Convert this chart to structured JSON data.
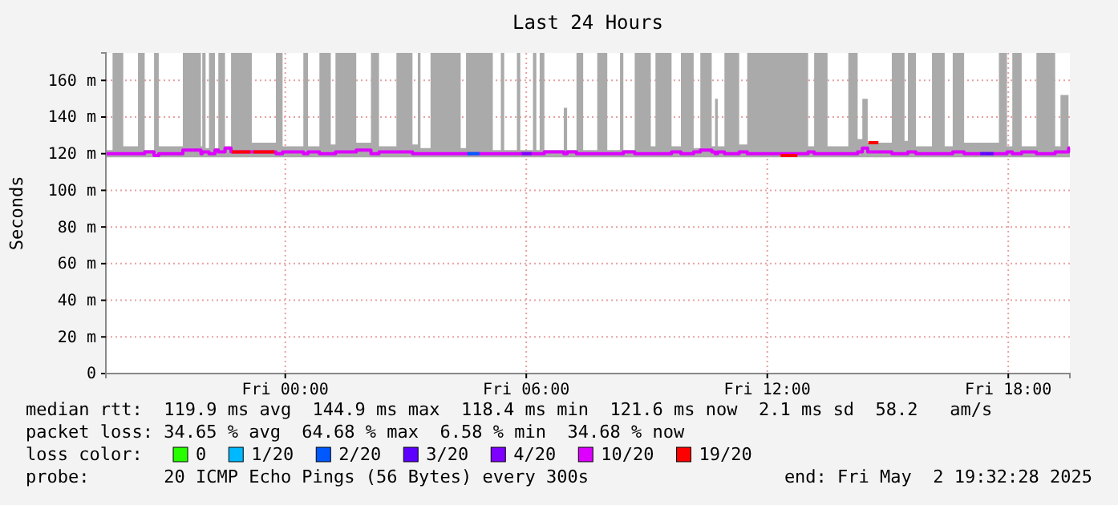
{
  "chart_data": {
    "type": "line",
    "title": "Last 24 Hours",
    "ylabel": "Seconds",
    "xlim": [
      "2025-05-01T19:32",
      "2025-05-02T19:32"
    ],
    "xticks": [
      {
        "value": "2025-05-02T00:00",
        "label": "Fri 00:00"
      },
      {
        "value": "2025-05-02T06:00",
        "label": "Fri 06:00"
      },
      {
        "value": "2025-05-02T12:00",
        "label": "Fri 12:00"
      },
      {
        "value": "2025-05-02T18:00",
        "label": "Fri 18:00"
      }
    ],
    "ylim": [
      0,
      175
    ],
    "yticks": [
      0,
      {
        "value": 20,
        "label": "20 m"
      },
      {
        "value": 40,
        "label": "40 m"
      },
      {
        "value": 60,
        "label": "60 m"
      },
      {
        "value": 80,
        "label": "80 m"
      },
      {
        "value": 100,
        "label": "100 m"
      },
      {
        "value": 120,
        "label": "120 m"
      },
      {
        "value": 140,
        "label": "140 m"
      },
      {
        "value": 160,
        "label": "160 m"
      }
    ],
    "grid": true,
    "legend": "bottom",
    "legend_title": "loss color:",
    "line_style": "solid",
    "marker": "none",
    "series": [
      {
        "name": "0",
        "color": "#26ff00"
      },
      {
        "name": "1/20",
        "color": "#00b8ff"
      },
      {
        "name": "2/20",
        "color": "#0059ff",
        "x": [
          "2025-05-02T04:32",
          "2025-05-02T04:50"
        ],
        "values": [
          120,
          120
        ]
      },
      {
        "name": "3/20",
        "color": "#5e00ff",
        "x": [
          "2025-05-02T17:18",
          "2025-05-02T17:38"
        ],
        "values": [
          120,
          120
        ]
      },
      {
        "name": "4/20",
        "color": "#7e00ff",
        "x": [
          "2025-05-02T05:53",
          "2025-05-02T06:08"
        ],
        "values": [
          120,
          120
        ]
      },
      {
        "name": "10/20",
        "color": "#dd00ff",
        "x": [
          "2025-05-01T19:32",
          "2025-05-01T19:42",
          "2025-05-01T19:58",
          "2025-05-01T20:20",
          "2025-05-01T20:30",
          "2025-05-01T20:44",
          "2025-05-01T20:51",
          "2025-05-01T21:27",
          "2025-05-01T21:54",
          "2025-05-01T21:56",
          "2025-05-01T22:01",
          "2025-05-01T22:06",
          "2025-05-01T22:15",
          "2025-05-01T22:20",
          "2025-05-01T22:30",
          "2025-05-01T22:39",
          "2025-05-01T23:10",
          "2025-05-01T23:46",
          "2025-05-01T23:56",
          "2025-05-02T00:27",
          "2025-05-02T00:34",
          "2025-05-02T00:51",
          "2025-05-02T01:08",
          "2025-05-02T01:15",
          "2025-05-02T01:46",
          "2025-05-02T02:08",
          "2025-05-02T02:20",
          "2025-05-02T02:46",
          "2025-05-02T03:10",
          "2025-05-02T03:18",
          "2025-05-02T03:22",
          "2025-05-02T03:37",
          "2025-05-02T04:22",
          "2025-05-02T04:30",
          "2025-05-02T05:10",
          "2025-05-02T05:22",
          "2025-05-02T05:27",
          "2025-05-02T05:46",
          "2025-05-02T05:51",
          "2025-05-02T06:10",
          "2025-05-02T06:15",
          "2025-05-02T06:20",
          "2025-05-02T06:27",
          "2025-05-02T06:56",
          "2025-05-02T07:01",
          "2025-05-02T07:15",
          "2025-05-02T07:25",
          "2025-05-02T07:46",
          "2025-05-02T08:01",
          "2025-05-02T08:20",
          "2025-05-02T08:25",
          "2025-05-02T08:42",
          "2025-05-02T09:06",
          "2025-05-02T09:13",
          "2025-05-02T09:37",
          "2025-05-02T09:51",
          "2025-05-02T10:10",
          "2025-05-02T10:20",
          "2025-05-02T10:37",
          "2025-05-02T10:42",
          "2025-05-02T10:46",
          "2025-05-02T10:56",
          "2025-05-02T11:18",
          "2025-05-02T11:30",
          "2025-05-02T13:01",
          "2025-05-02T13:10",
          "2025-05-02T13:30",
          "2025-05-02T14:01",
          "2025-05-02T14:15",
          "2025-05-02T14:22",
          "2025-05-02T14:30",
          "2025-05-02T15:06",
          "2025-05-02T15:25",
          "2025-05-02T15:30",
          "2025-05-02T15:42",
          "2025-05-02T16:06",
          "2025-05-02T16:25",
          "2025-05-02T16:37",
          "2025-05-02T16:54",
          "2025-05-02T17:46",
          "2025-05-02T17:58",
          "2025-05-02T18:06",
          "2025-05-02T18:20",
          "2025-05-02T18:42",
          "2025-05-02T19:10",
          "2025-05-02T19:18",
          "2025-05-02T19:30",
          "2025-05-02T19:32"
        ],
        "values": [
          120,
          120,
          120,
          120,
          121,
          119,
          120,
          122,
          120,
          121,
          121,
          120,
          122,
          121,
          123,
          121,
          121,
          120,
          121,
          120,
          121,
          120,
          120,
          121,
          122,
          120,
          121,
          121,
          120,
          120,
          120,
          120,
          120,
          120,
          120,
          120,
          120,
          120,
          120,
          120,
          120,
          120,
          121,
          120,
          121,
          120,
          120,
          120,
          120,
          120,
          121,
          120,
          120,
          120,
          121,
          120,
          121,
          122,
          121,
          120,
          121,
          120,
          121,
          120,
          121,
          120,
          120,
          120,
          121,
          123,
          121,
          120,
          120,
          121,
          120,
          120,
          120,
          121,
          120,
          120,
          121,
          120,
          121,
          120,
          121,
          121,
          123,
          123
        ],
        "lower": [
          118,
          118,
          118,
          118,
          118,
          118,
          118,
          118,
          118,
          118,
          118,
          118,
          118,
          118,
          118,
          118,
          118,
          118,
          118,
          118,
          118,
          118,
          118,
          118,
          118,
          118,
          118,
          118,
          118,
          118,
          118,
          118,
          118,
          118,
          118,
          118,
          118,
          118,
          118,
          118,
          118,
          118,
          118,
          118,
          118,
          118,
          118,
          118,
          118,
          118,
          118,
          118,
          118,
          118,
          118,
          118,
          118,
          118,
          118,
          118,
          118,
          118,
          118,
          118,
          118,
          118,
          118,
          118,
          118,
          118,
          118,
          118,
          118,
          118,
          118,
          118,
          118,
          118,
          118,
          118,
          118,
          118,
          118,
          118,
          118,
          118,
          118,
          118
        ],
        "upper": [
          122,
          175,
          124,
          175,
          122,
          175,
          124,
          175,
          124,
          175,
          123,
          175,
          123,
          175,
          124,
          175,
          126,
          175,
          124,
          175,
          124,
          175,
          125,
          175,
          126,
          175,
          124,
          175,
          125,
          175,
          123,
          175,
          123,
          175,
          122,
          175,
          122,
          175,
          122,
          175,
          122,
          175,
          122,
          145,
          122,
          175,
          122,
          175,
          122,
          175,
          122,
          175,
          124,
          175,
          124,
          175,
          123,
          175,
          124,
          150,
          124,
          175,
          125,
          175,
          124,
          175,
          124,
          175,
          128,
          150,
          126,
          175,
          127,
          175,
          124,
          175,
          124,
          175,
          126,
          175,
          124,
          175,
          124,
          175,
          124,
          152,
          124,
          124
        ]
      },
      {
        "name": "19/20",
        "color": "#ff0000",
        "x": [
          "2025-05-01T22:40",
          "2025-05-01T23:08",
          "2025-05-01T23:09",
          "2025-05-01T23:12",
          "2025-05-01T23:44",
          "2025-05-01T23:45",
          "2025-05-02T12:20",
          "2025-05-02T12:45",
          "2025-05-02T12:46",
          "2025-05-02T14:31",
          "2025-05-02T14:46"
        ],
        "values": [
          121,
          121,
          null,
          121,
          121,
          null,
          119,
          119,
          null,
          126,
          126
        ]
      }
    ],
    "annotations": [
      "median rtt:  119.9 ms avg  144.9 ms max  118.4 ms min  121.6 ms now  2.1 ms sd  58.2   am/s",
      "packet loss: 34.65 % avg  64.68 % max  6.58 % min  34.68 % now",
      "probe:       20 ICMP Echo Pings (56 Bytes) every 300s",
      "end: Fri May  2 19:32:28 2025"
    ]
  }
}
